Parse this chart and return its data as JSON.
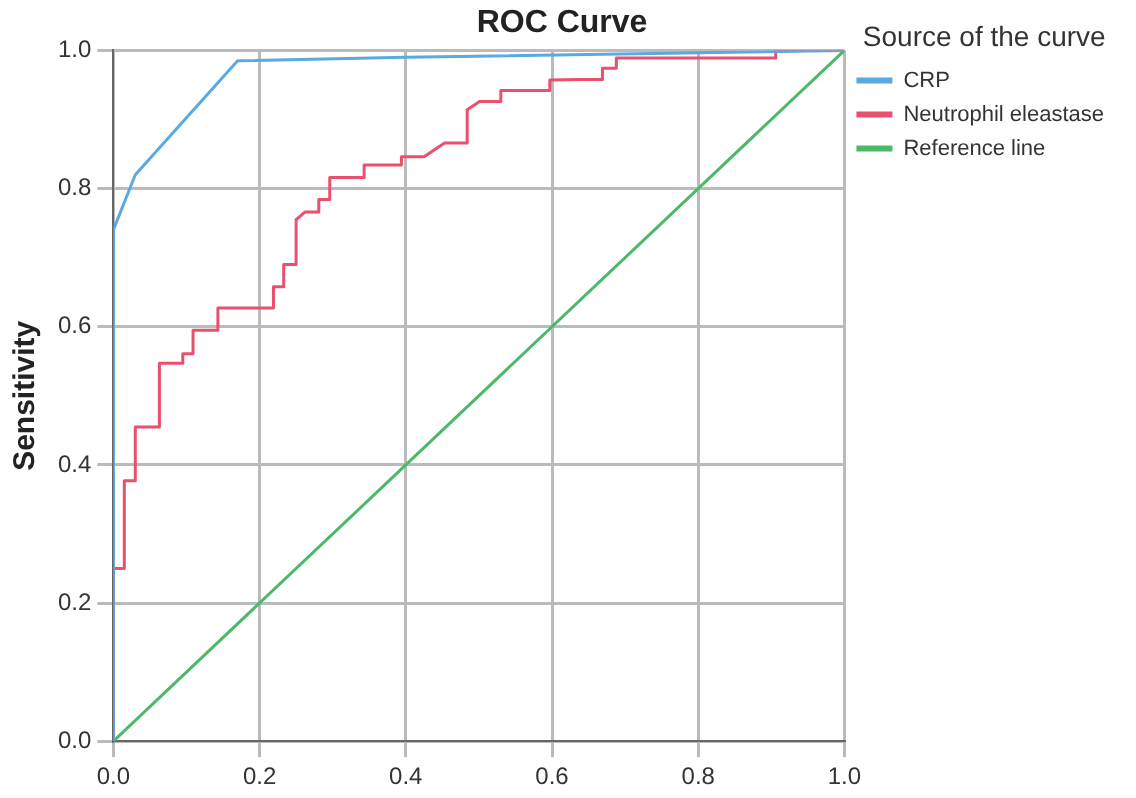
{
  "chart_data": {
    "type": "line",
    "title": "ROC Curve",
    "ylabel": "Sensitivity",
    "legend_title": "Source of the curve",
    "legend": "right",
    "grid": true,
    "marker": "none",
    "line_style": "solid",
    "xlim": [
      0,
      1
    ],
    "ylim": [
      0,
      1
    ],
    "xticks": [
      {
        "value": 0,
        "label": "0.0"
      },
      {
        "value": 0.2,
        "label": "0.2"
      },
      {
        "value": 0.4,
        "label": "0.4"
      },
      {
        "value": 0.6,
        "label": "0.6"
      },
      {
        "value": 0.8,
        "label": "0.8"
      },
      {
        "value": 1,
        "label": "1.0"
      }
    ],
    "yticks": [
      {
        "value": 0,
        "label": "0.0"
      },
      {
        "value": 0.2,
        "label": "0.2"
      },
      {
        "value": 0.4,
        "label": "0.4"
      },
      {
        "value": 0.6,
        "label": "0.6"
      },
      {
        "value": 0.8,
        "label": "0.8"
      },
      {
        "value": 1,
        "label": "1.0"
      }
    ],
    "series": [
      {
        "name": "CRP",
        "color": "#5aa9e0",
        "x": [
          0,
          0,
          0.03,
          0.17,
          0.4,
          1
        ],
        "values": [
          0,
          0.74,
          0.82,
          0.985,
          0.99,
          1
        ]
      },
      {
        "name": "Neutrophil eleastase",
        "color": "#e8506e",
        "x": [
          0,
          0,
          0.015,
          0.015,
          0.03,
          0.03,
          0.063,
          0.063,
          0.095,
          0.095,
          0.109,
          0.109,
          0.143,
          0.143,
          0.219,
          0.219,
          0.233,
          0.233,
          0.25,
          0.25,
          0.262,
          0.281,
          0.281,
          0.296,
          0.296,
          0.343,
          0.343,
          0.394,
          0.394,
          0.425,
          0.453,
          0.484,
          0.484,
          0.501,
          0.53,
          0.53,
          0.597,
          0.597,
          0.64,
          0.669,
          0.669,
          0.688,
          0.688,
          0.906,
          0.906,
          1
        ],
        "values": [
          0,
          0.25,
          0.25,
          0.377,
          0.377,
          0.455,
          0.455,
          0.547,
          0.547,
          0.561,
          0.561,
          0.595,
          0.595,
          0.627,
          0.627,
          0.658,
          0.658,
          0.69,
          0.69,
          0.755,
          0.766,
          0.766,
          0.784,
          0.784,
          0.816,
          0.816,
          0.834,
          0.834,
          0.846,
          0.846,
          0.866,
          0.866,
          0.914,
          0.926,
          0.926,
          0.942,
          0.942,
          0.957,
          0.958,
          0.958,
          0.974,
          0.974,
          0.989,
          0.989,
          1,
          1
        ]
      },
      {
        "name": "Reference line",
        "color": "#4cb86a",
        "x": [
          0,
          1
        ],
        "values": [
          0,
          1
        ]
      }
    ]
  }
}
